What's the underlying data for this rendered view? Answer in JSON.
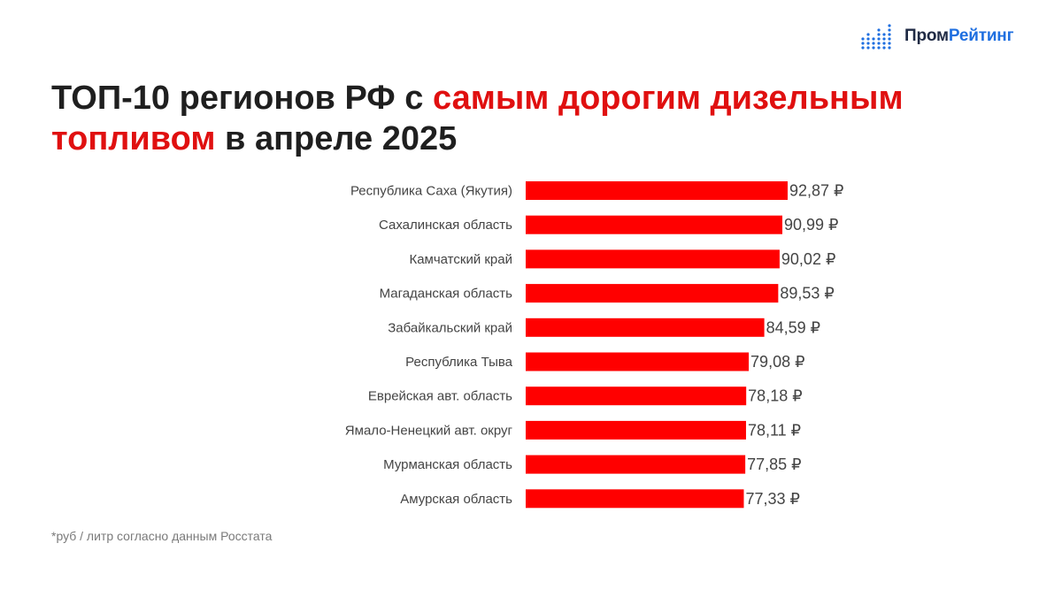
{
  "logo": {
    "text_part1": "Пром",
    "text_part2": "Рейтинг"
  },
  "title": {
    "part1": "ТОП-10 регионов РФ с ",
    "accent1": "самым дорогим дизельным",
    "accent2": "топливом",
    "part2": " в апреле 2025"
  },
  "footnote": "*руб / литр согласно данным Росстата",
  "colors": {
    "bar": "#ff0000",
    "accent": "#e01010",
    "logo_blue": "#1f6fe0",
    "logo_dark": "#1f2a44"
  },
  "chart_data": {
    "type": "bar",
    "orientation": "horizontal",
    "categories": [
      "Республика Саха (Якутия)",
      "Сахалинская область",
      "Камчатский край",
      "Магаданская область",
      "Забайкальский край",
      "Республика Тыва",
      "Еврейская авт. область",
      "Ямало-Ненецкий авт. округ",
      "Мурманская область",
      "Амурская область"
    ],
    "values": [
      92.87,
      90.99,
      90.02,
      89.53,
      84.59,
      79.08,
      78.18,
      78.11,
      77.85,
      77.33
    ],
    "data_labels": [
      "92,87 ₽",
      "90,99 ₽",
      "90,02 ₽",
      "89,53 ₽",
      "84,59 ₽",
      "79,08 ₽",
      "78,18 ₽",
      "78,11 ₽",
      "77,85 ₽",
      "77,33 ₽"
    ],
    "xlim": [
      0,
      92.87
    ],
    "grid": false,
    "legend": "none"
  }
}
